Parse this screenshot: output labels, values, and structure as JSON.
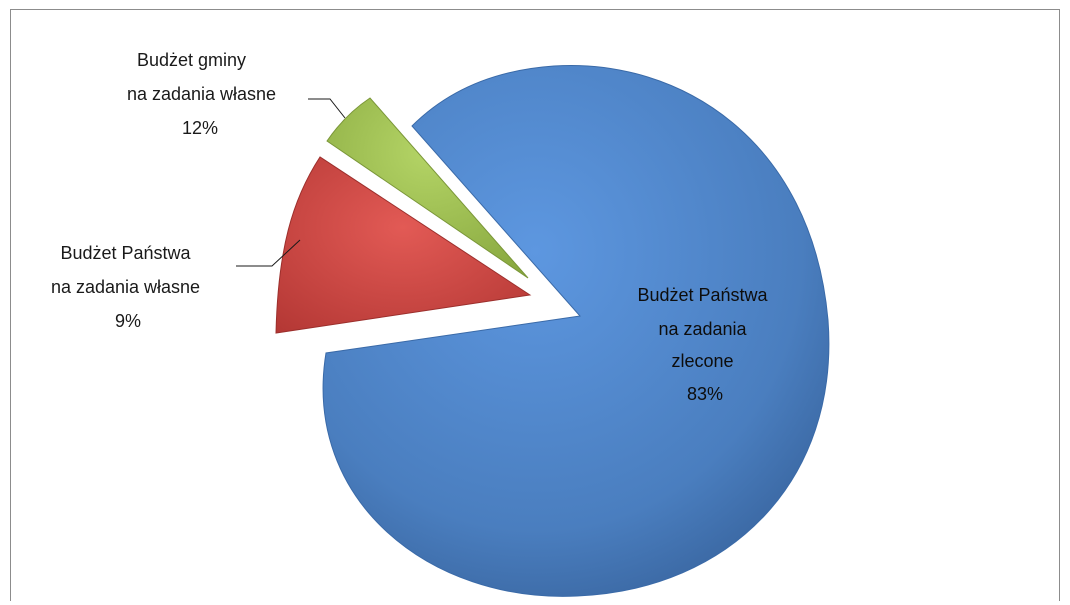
{
  "chart_data": {
    "type": "pie",
    "title": "",
    "slices": [
      {
        "label_lines": [
          "Budżet Państwa",
          "na zadania",
          "zlecone"
        ],
        "value_label": "83%",
        "value": 83,
        "color": "#4a7ebf"
      },
      {
        "label_lines": [
          "Budżet Państwa",
          "na zadania własne"
        ],
        "value_label": "9%",
        "value": 9,
        "color": "#c0403d"
      },
      {
        "label_lines": [
          "Budżet gminy",
          "na zadania własne"
        ],
        "value_label": "12%",
        "value": 12,
        "color": "#98ba4c"
      }
    ],
    "legend": "none",
    "style": "3d exploded"
  }
}
